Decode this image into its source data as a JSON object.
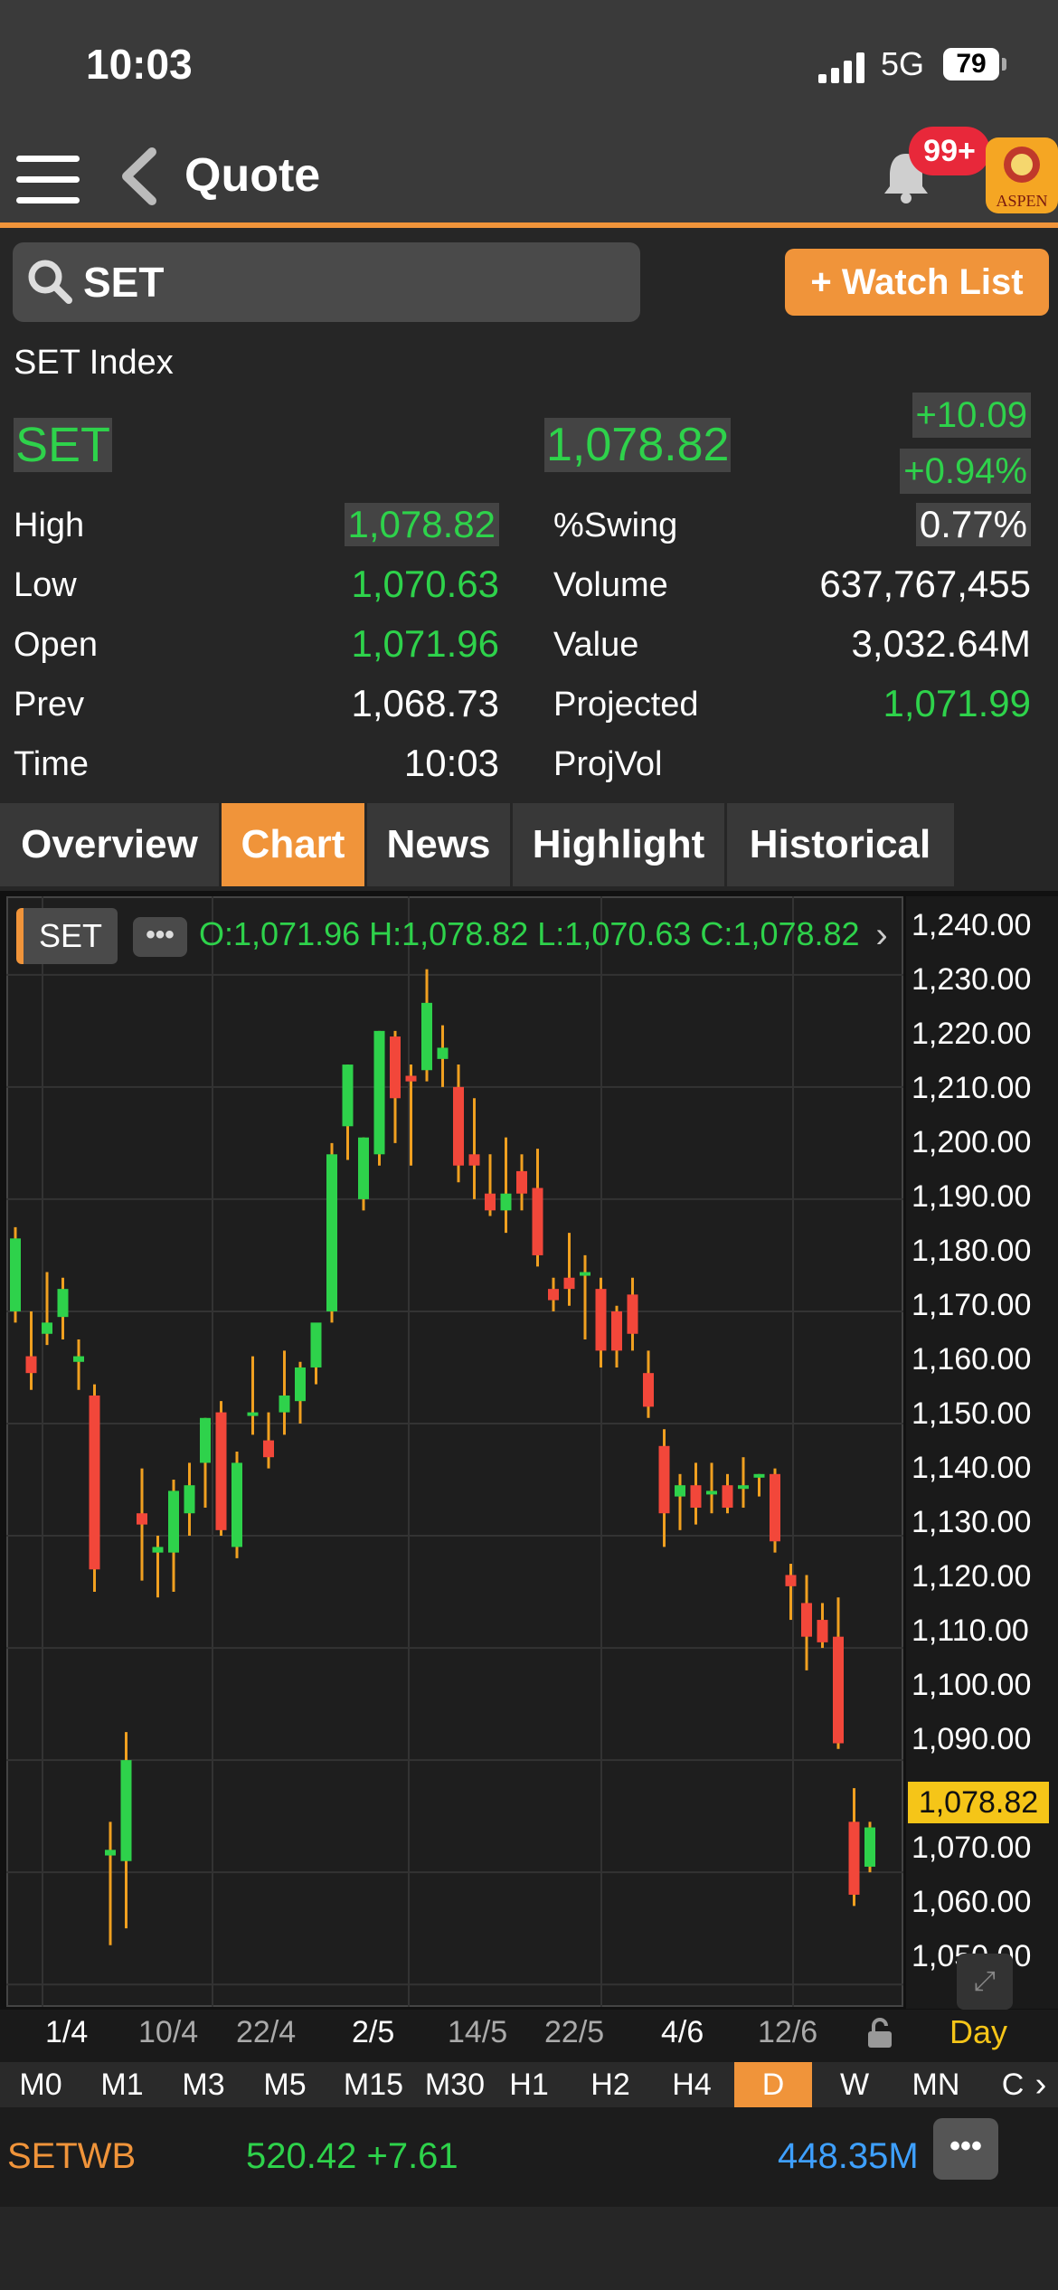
{
  "status_bar": {
    "time": "10:03",
    "network": "5G",
    "battery": "79"
  },
  "nav": {
    "title": "Quote",
    "notification_count": "99+",
    "logo_text": "ASPEN"
  },
  "search": {
    "value": "SET"
  },
  "watch_list_button": "+ Watch List",
  "quote": {
    "full_name": "SET Index",
    "symbol": "SET",
    "last": "1,078.82",
    "change": "+10.09",
    "percent_change": "+0.94%",
    "left_stats": [
      {
        "label": "High",
        "value": "1,078.82"
      },
      {
        "label": "Low",
        "value": "1,070.63"
      },
      {
        "label": "Open",
        "value": "1,071.96"
      },
      {
        "label": "Prev",
        "value": "1,068.73"
      },
      {
        "label": "Time",
        "value": "10:03"
      }
    ],
    "right_stats": [
      {
        "label": "%Swing",
        "value": "0.77%"
      },
      {
        "label": "Volume",
        "value": "637,767,455"
      },
      {
        "label": "Value",
        "value": "3,032.64M"
      },
      {
        "label": "Projected",
        "value": "1,071.99"
      },
      {
        "label": "ProjVol",
        "value": ""
      }
    ]
  },
  "tabs": [
    "Overview",
    "Chart",
    "News",
    "Highlight",
    "Historical"
  ],
  "active_tab": "Chart",
  "chart_header": {
    "symbol": "SET",
    "more": "•••",
    "ohlc": "O:1,071.96  H:1,078.82  L:1,070.63  C:1,078.82"
  },
  "chart_data": {
    "type": "candlestick",
    "y_ticks": [
      "1,240.00",
      "1,230.00",
      "1,220.00",
      "1,210.00",
      "1,200.00",
      "1,190.00",
      "1,180.00",
      "1,170.00",
      "1,160.00",
      "1,150.00",
      "1,140.00",
      "1,130.00",
      "1,120.00",
      "1,110.00",
      "1,100.00",
      "1,090.00",
      "1,070.00",
      "1,060.00",
      "1,050.00"
    ],
    "ylim": [
      1046,
      1244
    ],
    "current_price": "1,078.82",
    "x_ticks": [
      "1/4",
      "10/4",
      "22/4",
      "2/5",
      "14/5",
      "22/5",
      "4/6",
      "12/6"
    ],
    "interval_label": "Day",
    "candles": [
      {
        "o": 1170,
        "h": 1185,
        "l": 1168,
        "c": 1183
      },
      {
        "o": 1162,
        "h": 1170,
        "l": 1156,
        "c": 1159
      },
      {
        "o": 1166,
        "h": 1177,
        "l": 1164,
        "c": 1168
      },
      {
        "o": 1169,
        "h": 1176,
        "l": 1165,
        "c": 1174
      },
      {
        "o": 1161,
        "h": 1165,
        "l": 1156,
        "c": 1162
      },
      {
        "o": 1155,
        "h": 1157,
        "l": 1120,
        "c": 1124
      },
      {
        "o": 1073,
        "h": 1079,
        "l": 1057,
        "c": 1074
      },
      {
        "o": 1072,
        "h": 1095,
        "l": 1060,
        "c": 1090
      },
      {
        "o": 1134,
        "h": 1142,
        "l": 1122,
        "c": 1132
      },
      {
        "o": 1127,
        "h": 1130,
        "l": 1119,
        "c": 1128
      },
      {
        "o": 1127,
        "h": 1140,
        "l": 1120,
        "c": 1138
      },
      {
        "o": 1134,
        "h": 1143,
        "l": 1130,
        "c": 1139
      },
      {
        "o": 1143,
        "h": 1151,
        "l": 1135,
        "c": 1151
      },
      {
        "o": 1152,
        "h": 1154,
        "l": 1130,
        "c": 1131
      },
      {
        "o": 1128,
        "h": 1145,
        "l": 1126,
        "c": 1143
      },
      {
        "o": 1152,
        "h": 1162,
        "l": 1148,
        "c": 1152
      },
      {
        "o": 1147,
        "h": 1152,
        "l": 1142,
        "c": 1144
      },
      {
        "o": 1152,
        "h": 1163,
        "l": 1148,
        "c": 1155
      },
      {
        "o": 1154,
        "h": 1161,
        "l": 1150,
        "c": 1160
      },
      {
        "o": 1160,
        "h": 1167,
        "l": 1157,
        "c": 1168
      },
      {
        "o": 1170,
        "h": 1200,
        "l": 1168,
        "c": 1198
      },
      {
        "o": 1203,
        "h": 1214,
        "l": 1197,
        "c": 1214
      },
      {
        "o": 1190,
        "h": 1201,
        "l": 1188,
        "c": 1201
      },
      {
        "o": 1198,
        "h": 1220,
        "l": 1196,
        "c": 1220
      },
      {
        "o": 1219,
        "h": 1220,
        "l": 1200,
        "c": 1208
      },
      {
        "o": 1212,
        "h": 1214,
        "l": 1196,
        "c": 1211
      },
      {
        "o": 1213,
        "h": 1231,
        "l": 1211,
        "c": 1225
      },
      {
        "o": 1215,
        "h": 1221,
        "l": 1210,
        "c": 1217
      },
      {
        "o": 1210,
        "h": 1214,
        "l": 1193,
        "c": 1196
      },
      {
        "o": 1198,
        "h": 1208,
        "l": 1190,
        "c": 1196
      },
      {
        "o": 1191,
        "h": 1198,
        "l": 1187,
        "c": 1188
      },
      {
        "o": 1188,
        "h": 1201,
        "l": 1184,
        "c": 1191
      },
      {
        "o": 1195,
        "h": 1198,
        "l": 1188,
        "c": 1191
      },
      {
        "o": 1192,
        "h": 1199,
        "l": 1178,
        "c": 1180
      },
      {
        "o": 1174,
        "h": 1176,
        "l": 1170,
        "c": 1172
      },
      {
        "o": 1176,
        "h": 1184,
        "l": 1171,
        "c": 1174
      },
      {
        "o": 1177,
        "h": 1180,
        "l": 1165,
        "c": 1177
      },
      {
        "o": 1174,
        "h": 1176,
        "l": 1160,
        "c": 1163
      },
      {
        "o": 1170,
        "h": 1171,
        "l": 1160,
        "c": 1163
      },
      {
        "o": 1173,
        "h": 1176,
        "l": 1163,
        "c": 1166
      },
      {
        "o": 1159,
        "h": 1163,
        "l": 1151,
        "c": 1153
      },
      {
        "o": 1146,
        "h": 1149,
        "l": 1128,
        "c": 1134
      },
      {
        "o": 1137,
        "h": 1141,
        "l": 1131,
        "c": 1139
      },
      {
        "o": 1139,
        "h": 1143,
        "l": 1132,
        "c": 1135
      },
      {
        "o": 1138,
        "h": 1143,
        "l": 1134,
        "c": 1138
      },
      {
        "o": 1139,
        "h": 1141,
        "l": 1134,
        "c": 1135
      },
      {
        "o": 1139,
        "h": 1144,
        "l": 1135,
        "c": 1139
      },
      {
        "o": 1141,
        "h": 1141,
        "l": 1137,
        "c": 1141
      },
      {
        "o": 1141,
        "h": 1142,
        "l": 1127,
        "c": 1129
      },
      {
        "o": 1123,
        "h": 1125,
        "l": 1115,
        "c": 1121
      },
      {
        "o": 1118,
        "h": 1123,
        "l": 1106,
        "c": 1112
      },
      {
        "o": 1115,
        "h": 1118,
        "l": 1110,
        "c": 1111
      },
      {
        "o": 1112,
        "h": 1119,
        "l": 1092,
        "c": 1093
      },
      {
        "o": 1079,
        "h": 1085,
        "l": 1064,
        "c": 1066
      },
      {
        "o": 1071,
        "h": 1079,
        "l": 1070,
        "c": 1078
      }
    ]
  },
  "timeframes": [
    "M0",
    "M1",
    "M3",
    "M5",
    "M15",
    "M30",
    "H1",
    "H2",
    "H4",
    "D",
    "W",
    "MN",
    "C"
  ],
  "active_timeframe": "D",
  "ticker": {
    "symbol": "SETWB",
    "price_change": "520.42 +7.61",
    "value": "448.35M",
    "more": "•••"
  },
  "colors": {
    "accent": "#f0943a",
    "up": "#2ed24b",
    "down": "#f2473a",
    "price_tag": "#f5c518",
    "link": "#3ea0ff"
  }
}
